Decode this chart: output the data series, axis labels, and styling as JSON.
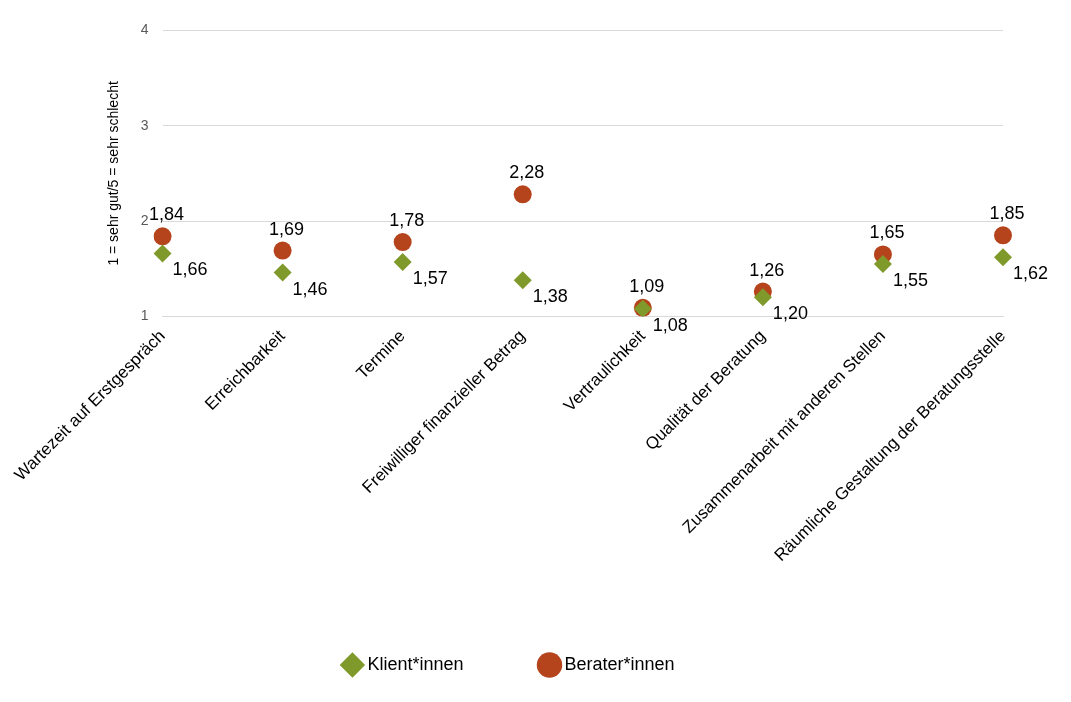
{
  "chart_data": {
    "type": "scatter",
    "ylabel": "1 = sehr gut/5 = sehr schlecht",
    "categories": [
      "Wartezeit auf Erstgespräch",
      "Erreichbarkeit",
      "Termine",
      "Freiwilliger finanzieller Betrag",
      "Vertraulichkeit",
      "Qualität der Beratung",
      "Zusammenarbeit mit anderen Stellen",
      "Räumliche Gestaltung der Beratungsstelle"
    ],
    "series": [
      {
        "name": "Klient*innen",
        "color": "#7f9a2b",
        "marker": "diamond",
        "values": [
          1.66,
          1.46,
          1.57,
          1.38,
          1.08,
          1.2,
          1.55,
          1.62
        ],
        "value_labels": [
          "1,66",
          "1,46",
          "1,57",
          "1,38",
          "1,08",
          "1,20",
          "1,55",
          "1,62"
        ]
      },
      {
        "name": "Berater*innen",
        "color": "#b5441c",
        "marker": "circle",
        "values": [
          1.84,
          1.69,
          1.78,
          2.28,
          1.09,
          1.26,
          1.65,
          1.85
        ],
        "value_labels": [
          "1,84",
          "1,69",
          "1,78",
          "2,28",
          "1,09",
          "1,26",
          "1,65",
          "1,85"
        ]
      }
    ],
    "ylim": [
      1,
      4
    ],
    "yticks": [
      1,
      2,
      3,
      4
    ],
    "grid": "y",
    "legend": "bottom"
  }
}
